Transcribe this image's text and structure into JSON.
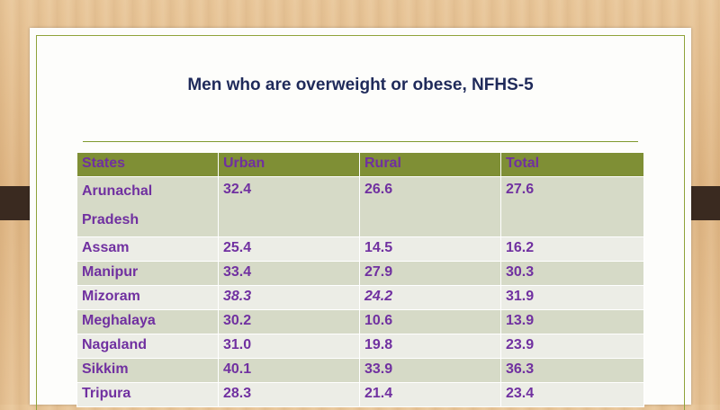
{
  "title": "Men who are overweight or obese, NFHS-5",
  "table": {
    "headers": [
      "States",
      "Urban",
      "Rural",
      "Total"
    ],
    "rows": [
      {
        "state_line1": "Arunachal",
        "state_line2": "Pradesh",
        "urban": "32.4",
        "rural": "26.6",
        "total": "27.6"
      },
      {
        "state": "Assam",
        "urban": "25.4",
        "rural": "14.5",
        "total": "16.2"
      },
      {
        "state": "Manipur",
        "urban": "33.4",
        "rural": "27.9",
        "total": "30.3"
      },
      {
        "state": "Mizoram",
        "urban": "38.3",
        "rural": "24.2",
        "total": "31.9"
      },
      {
        "state": "Meghalaya",
        "urban": "30.2",
        "rural": "10.6",
        "total": "13.9"
      },
      {
        "state": "Nagaland",
        "urban": "31.0",
        "rural": "19.8",
        "total": "23.9"
      },
      {
        "state": "Sikkim",
        "urban": "40.1",
        "rural": "33.9",
        "total": "36.3"
      },
      {
        "state": "Tripura",
        "urban": "28.3",
        "rural": "21.4",
        "total": "23.4"
      }
    ]
  },
  "colors": {
    "header_bg": "#7f8f35",
    "text": "#7030a0",
    "title": "#1f2a5a",
    "frame": "#8fa33a"
  }
}
